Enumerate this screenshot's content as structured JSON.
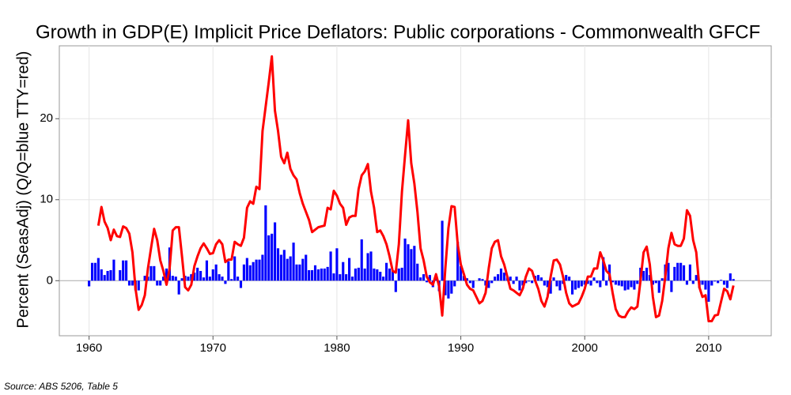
{
  "chart_data": {
    "type": "bar-line",
    "title": "Growth in GDP(E) Implicit Price Deflators: Public corporations - Commonwealth GFCF",
    "y_label": "Percent (SeasAdj) (Q/Q=blue TTY=red)",
    "source": "Source: ABS 5206, Table 5",
    "xlim": [
      1957.6,
      2015.05
    ],
    "xticks": [
      1960,
      1970,
      1980,
      1990,
      2000,
      2010
    ],
    "ylim": [
      -6.8,
      29
    ],
    "yticks": [
      0,
      10,
      20
    ],
    "grid": true,
    "x": [
      1960,
      1960.25,
      1960.5,
      1960.75,
      1961,
      1961.25,
      1961.5,
      1961.75,
      1962,
      1962.25,
      1962.5,
      1962.75,
      1963,
      1963.25,
      1963.5,
      1963.75,
      1964,
      1964.25,
      1964.5,
      1964.75,
      1965,
      1965.25,
      1965.5,
      1965.75,
      1966,
      1966.25,
      1966.5,
      1966.75,
      1967,
      1967.25,
      1967.5,
      1967.75,
      1968,
      1968.25,
      1968.5,
      1968.75,
      1969,
      1969.25,
      1969.5,
      1969.75,
      1970,
      1970.25,
      1970.5,
      1970.75,
      1971,
      1971.25,
      1971.5,
      1971.75,
      1972,
      1972.25,
      1972.5,
      1972.75,
      1973,
      1973.25,
      1973.5,
      1973.75,
      1974,
      1974.25,
      1974.5,
      1974.75,
      1975,
      1975.25,
      1975.5,
      1975.75,
      1976,
      1976.25,
      1976.5,
      1976.75,
      1977,
      1977.25,
      1977.5,
      1977.75,
      1978,
      1978.25,
      1978.5,
      1978.75,
      1979,
      1979.25,
      1979.5,
      1979.75,
      1980,
      1980.25,
      1980.5,
      1980.75,
      1981,
      1981.25,
      1981.5,
      1981.75,
      1982,
      1982.25,
      1982.5,
      1982.75,
      1983,
      1983.25,
      1983.5,
      1983.75,
      1984,
      1984.25,
      1984.5,
      1984.75,
      1985,
      1985.25,
      1985.5,
      1985.75,
      1986,
      1986.25,
      1986.5,
      1986.75,
      1987,
      1987.25,
      1987.5,
      1987.75,
      1988,
      1988.25,
      1988.5,
      1988.75,
      1989,
      1989.25,
      1989.5,
      1989.75,
      1990,
      1990.25,
      1990.5,
      1990.75,
      1991,
      1991.25,
      1991.5,
      1991.75,
      1992,
      1992.25,
      1992.5,
      1992.75,
      1993,
      1993.25,
      1993.5,
      1993.75,
      1994,
      1994.25,
      1994.5,
      1994.75,
      1995,
      1995.25,
      1995.5,
      1995.75,
      1996,
      1996.25,
      1996.5,
      1996.75,
      1997,
      1997.25,
      1997.5,
      1997.75,
      1998,
      1998.25,
      1998.5,
      1998.75,
      1999,
      1999.25,
      1999.5,
      1999.75,
      2000,
      2000.25,
      2000.5,
      2000.75,
      2001,
      2001.25,
      2001.5,
      2001.75,
      2002,
      2002.25,
      2002.5,
      2002.75,
      2003,
      2003.25,
      2003.5,
      2003.75,
      2004,
      2004.25,
      2004.5,
      2004.75,
      2005,
      2005.25,
      2005.5,
      2005.75,
      2006,
      2006.25,
      2006.5,
      2006.75,
      2007,
      2007.25,
      2007.5,
      2007.75,
      2008,
      2008.25,
      2008.5,
      2008.75,
      2009,
      2009.25,
      2009.5,
      2009.75,
      2010,
      2010.25,
      2010.5,
      2010.75,
      2011,
      2011.25,
      2011.5,
      2011.75,
      2012
    ],
    "series": [
      {
        "type": "bar",
        "color": "#0000ff",
        "values": [
          -0.7,
          2.2,
          2.2,
          2.8,
          1.4,
          0.7,
          1.2,
          1.3,
          2.6,
          0,
          1.3,
          2.5,
          2.5,
          -0.6,
          -0.6,
          -1.2,
          -1.2,
          0,
          0.6,
          0.5,
          1.8,
          1.8,
          -0.6,
          -0.6,
          0.5,
          1.5,
          4.1,
          0.6,
          0.5,
          -1.7,
          0.3,
          0.6,
          0.5,
          0.8,
          1.0,
          1.6,
          1.2,
          0.4,
          2.5,
          0.5,
          1.4,
          2.0,
          0.8,
          0.5,
          -0.4,
          2.4,
          0.2,
          3.0,
          0.5,
          -0.9,
          2.0,
          2.8,
          1.9,
          2.3,
          2.6,
          2.6,
          3.2,
          9.3,
          5.6,
          5.8,
          7.2,
          4.0,
          3.2,
          3.8,
          2.7,
          3.0,
          4.7,
          2.0,
          2.0,
          2.7,
          3.2,
          1.3,
          1.3,
          1.9,
          1.4,
          1.5,
          1.5,
          1.7,
          3.6,
          0.9,
          4.0,
          0.8,
          2.3,
          0.8,
          2.8,
          0.5,
          1.5,
          1.6,
          5.1,
          1.5,
          3.4,
          3.6,
          1.5,
          1.4,
          1.1,
          0.5,
          2.2,
          1.5,
          1.2,
          -1.4,
          1.5,
          1.6,
          5.2,
          4.5,
          3.9,
          4.3,
          2.1,
          0.4,
          0.8,
          -0.2,
          0.7,
          -0.8,
          0.4,
          -1.3,
          7.4,
          -1.8,
          -2.2,
          -1.6,
          -0.7,
          4.8,
          1.8,
          0.6,
          0.3,
          -0.3,
          -0.9,
          0.0,
          0.3,
          0.2,
          -0.6,
          -0.9,
          -0.3,
          0.5,
          0.8,
          1.5,
          1.0,
          0.4,
          0.5,
          -0.4,
          0.5,
          -1.2,
          -0.6,
          -0.3,
          -0.1,
          -0.3,
          0.6,
          0.7,
          0.4,
          -0.6,
          -0.8,
          -1.6,
          0.4,
          -0.7,
          -1.2,
          -0.4,
          0.7,
          0.5,
          -1.7,
          -1.1,
          -0.9,
          -0.7,
          -0.5,
          -0.4,
          -0.6,
          0.4,
          -0.3,
          -0.8,
          2.9,
          -0.6,
          2.0,
          -0.2,
          -0.5,
          -0.6,
          -0.7,
          -1.2,
          -1.1,
          -0.8,
          -1.1,
          -0.4,
          1.6,
          1.2,
          1.6,
          0.7,
          -0.5,
          -0.3,
          -1.5,
          0.3,
          2.0,
          2.2,
          -1.4,
          1.7,
          2.2,
          2.2,
          1.9,
          -0.5,
          2.0,
          -0.4,
          0.7,
          -0.9,
          -0.5,
          -1.1,
          -2.6,
          -0.6,
          -0.1,
          -0.3,
          0.1,
          -0.5,
          -0.9,
          0.9,
          0.2
        ]
      },
      {
        "type": "line",
        "color": "#ff0000",
        "values": [
          null,
          null,
          null,
          6.8,
          9.1,
          7.3,
          6.5,
          5.0,
          6.3,
          5.5,
          5.4,
          6.7,
          6.5,
          5.8,
          3.5,
          -1.0,
          -3.6,
          -3.0,
          -1.8,
          1.5,
          4.0,
          6.4,
          5.0,
          2.5,
          1.2,
          -0.5,
          1.5,
          6.2,
          6.6,
          6.6,
          3.0,
          -0.8,
          -1.2,
          -0.5,
          1.8,
          3.0,
          4.0,
          4.6,
          4.0,
          3.3,
          3.4,
          4.5,
          5.0,
          4.5,
          2.3,
          2.6,
          2.6,
          4.8,
          4.5,
          4.3,
          5.3,
          9.0,
          9.8,
          9.5,
          11.6,
          11.3,
          18.5,
          21.5,
          24.5,
          27.7,
          21.0,
          18.5,
          15.3,
          14.5,
          15.8,
          13.8,
          13.0,
          12.5,
          10.8,
          9.5,
          8.5,
          7.5,
          6.0,
          6.3,
          6.6,
          6.7,
          6.8,
          9.0,
          8.8,
          11.1,
          10.5,
          9.5,
          9.0,
          6.9,
          7.8,
          8.0,
          8.0,
          11.3,
          13.0,
          13.5,
          14.4,
          11.0,
          9.0,
          6.0,
          6.2,
          5.5,
          4.5,
          3.0,
          1.2,
          1.0,
          4.5,
          11.0,
          15.5,
          19.8,
          14.5,
          12.0,
          8.5,
          4.0,
          2.5,
          0.5,
          -0.2,
          -0.5,
          0.8,
          -0.7,
          -4.3,
          1.5,
          6.5,
          9.2,
          9.1,
          4.5,
          2.0,
          0.8,
          -0.5,
          -1.0,
          -1.2,
          -2.0,
          -2.8,
          -2.5,
          -1.5,
          1.5,
          4.0,
          4.8,
          5.0,
          3.0,
          2.0,
          0.5,
          -1.0,
          -1.2,
          -1.5,
          -1.8,
          -1.0,
          0.5,
          1.5,
          1.2,
          0.0,
          -1.0,
          -2.5,
          -3.2,
          -2.0,
          0.5,
          2.5,
          2.6,
          2.0,
          0.5,
          -1.5,
          -2.8,
          -3.2,
          -3.0,
          -2.8,
          -2.0,
          -1.0,
          0.5,
          0.5,
          1.5,
          1.5,
          3.5,
          2.5,
          1.2,
          0.8,
          -1.5,
          -3.5,
          -4.3,
          -4.5,
          -4.5,
          -3.8,
          -3.3,
          -3.5,
          -3.2,
          0.0,
          3.5,
          4.2,
          2.0,
          -2.0,
          -4.5,
          -4.3,
          -2.5,
          0.5,
          4.0,
          5.9,
          4.5,
          4.3,
          4.3,
          5.2,
          8.7,
          8.0,
          5.0,
          3.5,
          -0.8,
          -2.0,
          -1.8,
          -5.0,
          -5.0,
          -4.3,
          -4.2,
          -2.6,
          -1.0,
          -1.3,
          -2.3,
          -0.6
        ]
      }
    ]
  }
}
